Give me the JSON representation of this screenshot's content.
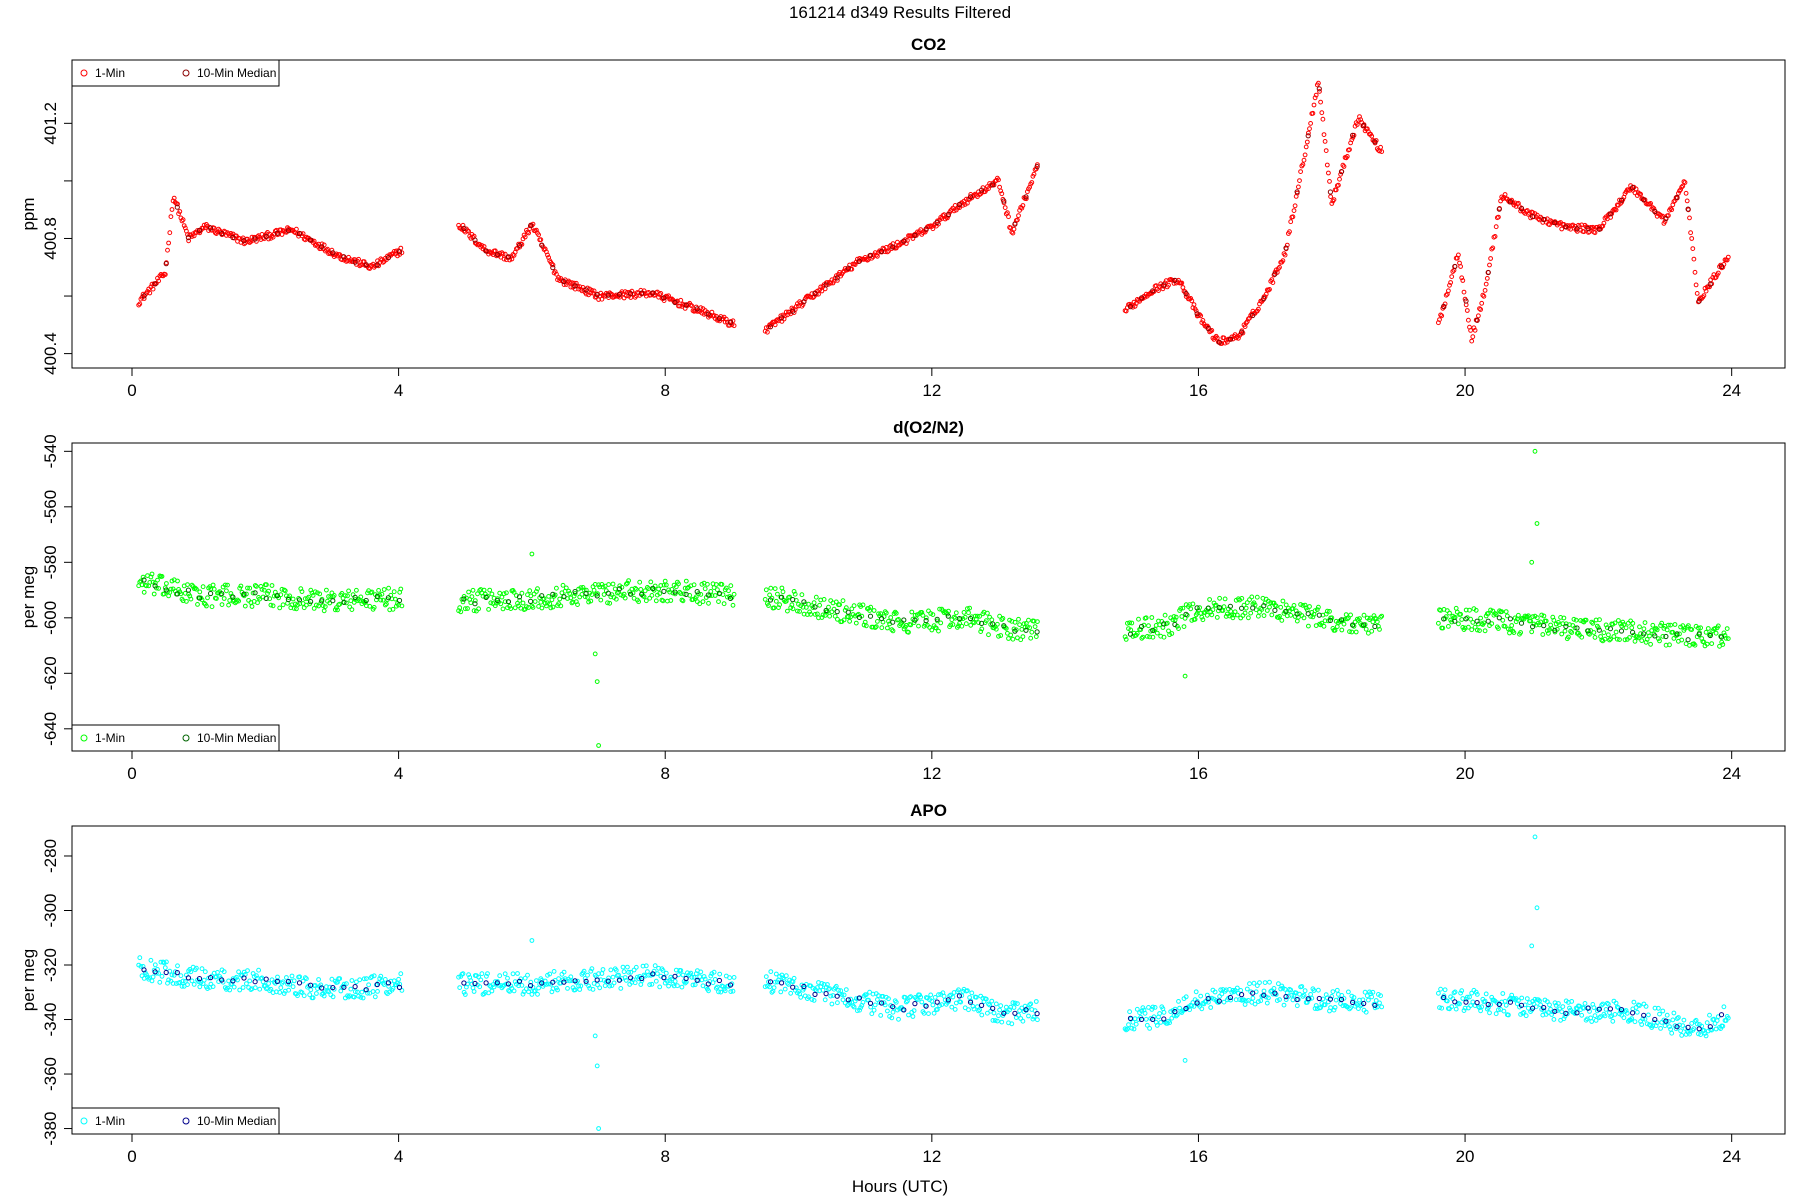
{
  "page": {
    "title": "161214   d349   Results Filtered",
    "xlabel": "Hours (UTC)"
  },
  "legend": {
    "minute_label": "1-Min",
    "median_label": "10-Min Median"
  },
  "chart_data": [
    {
      "type": "scatter",
      "title": "CO2",
      "ylabel": "ppm",
      "xlim": [
        -0.9,
        24.8
      ],
      "ylim": [
        400.35,
        401.42
      ],
      "xticks": [
        0,
        4,
        8,
        12,
        16,
        20,
        24
      ],
      "yticks": [
        400.4,
        400.6,
        400.8,
        401.0,
        401.2
      ],
      "ytick_labels": [
        "400.4",
        "",
        "400.8",
        "",
        "401.2"
      ],
      "legend_position": "top-left",
      "colors": {
        "minute": "#ff0000",
        "median": "#8b0000"
      },
      "segments": [
        {
          "x": [
            0.1,
            0.5,
            0.62,
            0.85,
            1.1,
            1.7,
            2.4,
            3.1,
            3.6,
            4.05
          ],
          "y": [
            400.58,
            400.68,
            400.95,
            400.8,
            400.84,
            400.79,
            400.83,
            400.74,
            400.7,
            400.76
          ]
        },
        {
          "x": [
            4.9,
            5.3,
            5.7,
            6.0,
            6.4,
            7.0,
            7.8,
            8.4,
            9.05
          ],
          "y": [
            400.85,
            400.76,
            400.73,
            400.85,
            400.66,
            400.6,
            400.61,
            400.56,
            400.5
          ]
        },
        {
          "x": [
            9.5,
            10.2,
            10.9,
            11.5,
            12.0,
            12.5,
            13.0,
            13.2,
            13.6
          ],
          "y": [
            400.48,
            400.6,
            400.72,
            400.78,
            400.84,
            400.93,
            401.0,
            400.82,
            401.06
          ]
        },
        {
          "x": [
            14.9,
            15.3,
            15.7,
            16.0,
            16.3,
            16.6,
            17.0,
            17.3,
            17.6,
            17.8,
            18.0,
            18.4,
            18.75
          ],
          "y": [
            400.55,
            400.62,
            400.66,
            400.53,
            400.44,
            400.46,
            400.6,
            400.75,
            401.1,
            401.35,
            400.92,
            401.22,
            401.1
          ]
        },
        {
          "x": [
            19.6,
            19.9,
            20.1,
            20.3,
            20.55,
            21.0,
            21.5,
            22.0,
            22.5,
            23.0,
            23.3,
            23.5,
            23.95
          ],
          "y": [
            400.5,
            400.75,
            400.45,
            400.62,
            400.95,
            400.88,
            400.84,
            400.83,
            400.98,
            400.86,
            401.0,
            400.58,
            400.74
          ]
        }
      ],
      "noise": 0.012,
      "spikes": []
    },
    {
      "type": "scatter",
      "title": "d(O2/N2)",
      "ylabel": "per meg",
      "xlim": [
        -0.9,
        24.8
      ],
      "ylim": [
        -648,
        -537
      ],
      "xticks": [
        0,
        4,
        8,
        12,
        16,
        20,
        24
      ],
      "yticks": [
        -640,
        -620,
        -600,
        -580,
        -560,
        -540
      ],
      "ytick_labels": [
        "-640",
        "-620",
        "-600",
        "-580",
        "-560",
        "-540"
      ],
      "legend_position": "bottom-left",
      "colors": {
        "minute": "#00ff00",
        "median": "#006400"
      },
      "segments": [
        {
          "x": [
            0.1,
            1.0,
            2.0,
            3.0,
            4.05
          ],
          "y": [
            -587,
            -592,
            -592,
            -594,
            -593
          ]
        },
        {
          "x": [
            4.9,
            6.0,
            7.0,
            8.0,
            9.05
          ],
          "y": [
            -594,
            -593,
            -591,
            -590,
            -592
          ]
        },
        {
          "x": [
            9.5,
            10.5,
            11.5,
            12.5,
            13.0,
            13.6
          ],
          "y": [
            -592,
            -597,
            -602,
            -600,
            -603,
            -605
          ]
        },
        {
          "x": [
            14.9,
            15.5,
            16.0,
            17.0,
            18.0,
            18.75
          ],
          "y": [
            -605,
            -603,
            -597,
            -596,
            -601,
            -603
          ]
        },
        {
          "x": [
            19.6,
            20.5,
            21.5,
            22.5,
            23.5,
            23.95
          ],
          "y": [
            -600,
            -601,
            -604,
            -605,
            -607,
            -606
          ]
        }
      ],
      "noise": 4,
      "spikes": [
        {
          "x": 6.98,
          "y": -623
        },
        {
          "x": 7.0,
          "y": -646
        },
        {
          "x": 6.95,
          "y": -613
        },
        {
          "x": 21.05,
          "y": -540
        },
        {
          "x": 21.08,
          "y": -566
        },
        {
          "x": 21.0,
          "y": -580
        },
        {
          "x": 15.8,
          "y": -621
        },
        {
          "x": 6.0,
          "y": -577
        }
      ]
    },
    {
      "type": "scatter",
      "title": "APO",
      "ylabel": "per meg",
      "xlim": [
        -0.9,
        24.8
      ],
      "ylim": [
        -382,
        -269
      ],
      "xticks": [
        0,
        4,
        8,
        12,
        16,
        20,
        24
      ],
      "yticks": [
        -380,
        -360,
        -340,
        -320,
        -300,
        -280
      ],
      "ytick_labels": [
        "-380",
        "-360",
        "-340",
        "-320",
        "-300",
        "-280"
      ],
      "legend_position": "bottom-left",
      "colors": {
        "minute": "#00ffff",
        "median": "#00008b"
      },
      "segments": [
        {
          "x": [
            0.1,
            1.0,
            2.0,
            3.0,
            4.05
          ],
          "y": [
            -321,
            -325,
            -326,
            -329,
            -327
          ]
        },
        {
          "x": [
            4.9,
            6.0,
            7.0,
            8.0,
            9.05
          ],
          "y": [
            -327,
            -327,
            -325,
            -324,
            -327
          ]
        },
        {
          "x": [
            9.5,
            10.5,
            11.5,
            12.5,
            13.0,
            13.6
          ],
          "y": [
            -326,
            -331,
            -336,
            -332,
            -338,
            -337
          ]
        },
        {
          "x": [
            14.9,
            15.5,
            16.0,
            17.0,
            18.0,
            18.75
          ],
          "y": [
            -340,
            -339,
            -333,
            -330,
            -333,
            -334
          ]
        },
        {
          "x": [
            19.6,
            20.5,
            21.5,
            22.5,
            23.5,
            23.95
          ],
          "y": [
            -332,
            -334,
            -337,
            -337,
            -344,
            -338
          ]
        }
      ],
      "noise": 4,
      "spikes": [
        {
          "x": 6.98,
          "y": -357
        },
        {
          "x": 7.0,
          "y": -380
        },
        {
          "x": 6.95,
          "y": -346
        },
        {
          "x": 21.05,
          "y": -273
        },
        {
          "x": 21.08,
          "y": -299
        },
        {
          "x": 21.0,
          "y": -313
        },
        {
          "x": 15.8,
          "y": -355
        },
        {
          "x": 6.0,
          "y": -311
        }
      ]
    }
  ]
}
